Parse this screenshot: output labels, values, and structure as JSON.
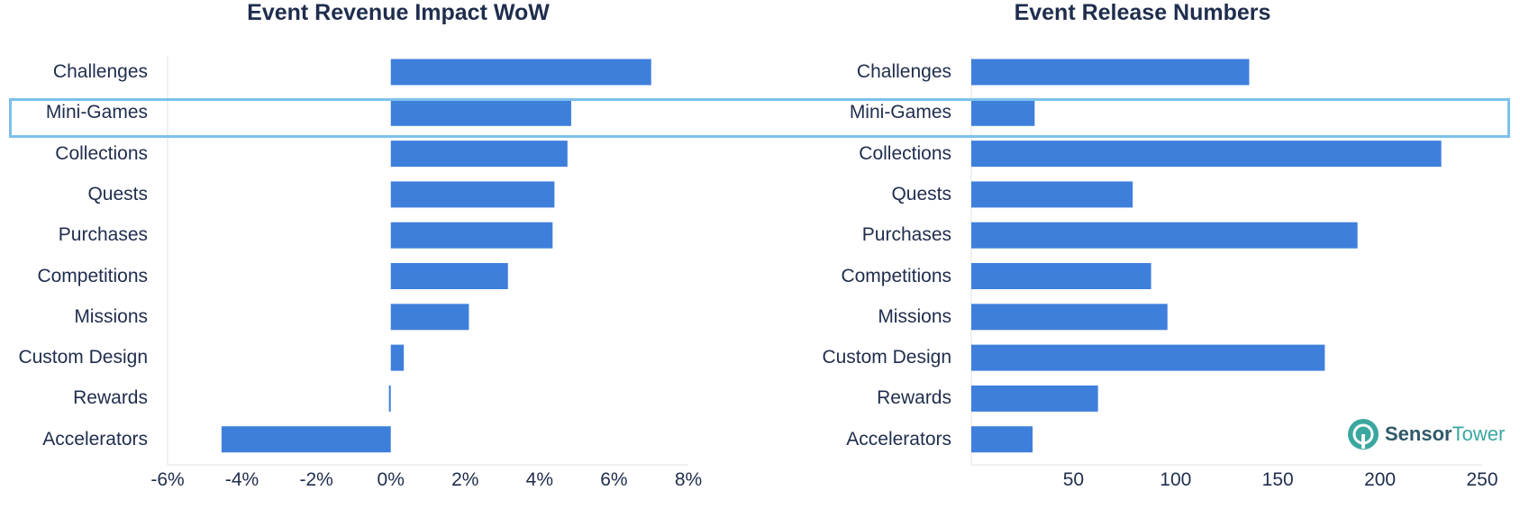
{
  "colors": {
    "bar": "#3f7fdc",
    "text": "#1f2d4d",
    "highlight": "#7cc1ec",
    "axis": "#e0e0e0"
  },
  "highlight": {
    "category": "Mini-Games"
  },
  "logo": {
    "word_strong": "Sensor",
    "word_light": "Tower",
    "icon": "sensor-tower-logo-icon"
  },
  "chart_data": [
    {
      "type": "bar",
      "orientation": "horizontal",
      "title": "Event Revenue Impact WoW",
      "categories": [
        "Challenges",
        "Mini-Games",
        "Collections",
        "Quests",
        "Purchases",
        "Competitions",
        "Missions",
        "Custom Design",
        "Rewards",
        "Accelerators"
      ],
      "values": [
        7.0,
        4.85,
        4.75,
        4.4,
        4.35,
        3.15,
        2.1,
        0.35,
        -0.05,
        -4.55
      ],
      "unit": "%",
      "xlim": [
        -6,
        8
      ],
      "xticks": [
        "-6%",
        "-4%",
        "-2%",
        "0%",
        "2%",
        "4%",
        "6%",
        "8%"
      ],
      "xtick_values": [
        -6,
        -4,
        -2,
        0,
        2,
        4,
        6,
        8
      ],
      "grid": false
    },
    {
      "type": "bar",
      "orientation": "horizontal",
      "title": "Event Release Numbers",
      "categories": [
        "Challenges",
        "Mini-Games",
        "Collections",
        "Quests",
        "Purchases",
        "Competitions",
        "Missions",
        "Custom Design",
        "Rewards",
        "Accelerators"
      ],
      "values": [
        136,
        31,
        230,
        79,
        189,
        88,
        96,
        173,
        62,
        30
      ],
      "xlim": [
        0,
        250
      ],
      "xticks": [
        "50",
        "100",
        "150",
        "200",
        "250"
      ],
      "xtick_values": [
        50,
        100,
        150,
        200,
        250
      ],
      "grid": false
    }
  ]
}
